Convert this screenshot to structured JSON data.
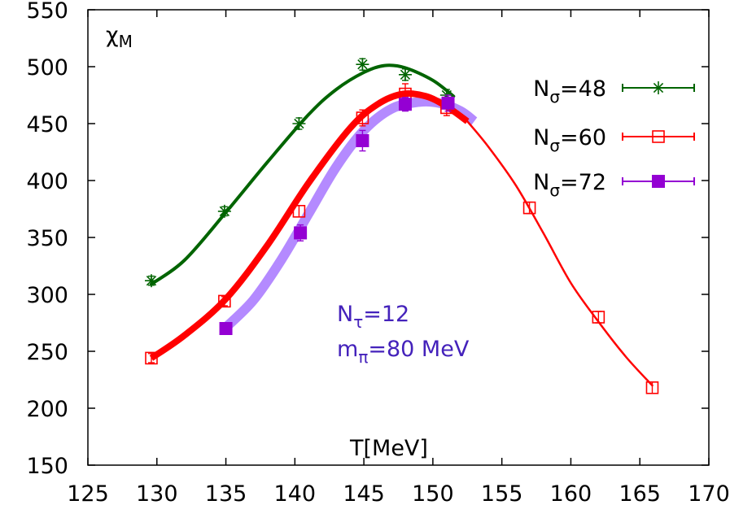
{
  "chart_data": {
    "type": "scatter",
    "title": "",
    "xlabel": "T[MeV]",
    "ylabel": "χ",
    "ylabel_sub": "M",
    "xlim": [
      125,
      170
    ],
    "ylim": [
      150,
      550
    ],
    "xticks": [
      125,
      130,
      135,
      140,
      145,
      150,
      155,
      160,
      165,
      170
    ],
    "xtick_labels": [
      "125",
      "130",
      "135",
      "140",
      "145",
      "150",
      "155",
      "160",
      "165",
      "170"
    ],
    "yticks": [
      150,
      200,
      250,
      300,
      350,
      400,
      450,
      500,
      550
    ],
    "ytick_labels": [
      "150",
      "200",
      "250",
      "300",
      "350",
      "400",
      "450",
      "500",
      "550"
    ],
    "grid": false,
    "legend_position": "top-right",
    "series": [
      {
        "name": "N",
        "name_sub": "σ",
        "name_suffix": "=48",
        "color": "#006400",
        "marker": "asterisk",
        "points": [
          {
            "x": 129.6,
            "y": 312,
            "err": 4
          },
          {
            "x": 134.9,
            "y": 373,
            "err": 4
          },
          {
            "x": 140.3,
            "y": 450,
            "err": 5
          },
          {
            "x": 144.9,
            "y": 502,
            "err": 5
          },
          {
            "x": 148.0,
            "y": 493,
            "err": 5
          },
          {
            "x": 151.0,
            "y": 475,
            "err": 5
          }
        ],
        "curve": [
          [
            129.6,
            309
          ],
          [
            132,
            330
          ],
          [
            135,
            372
          ],
          [
            138,
            416
          ],
          [
            141,
            458
          ],
          [
            143,
            480
          ],
          [
            145,
            495
          ],
          [
            146.5,
            501
          ],
          [
            148,
            499
          ],
          [
            150,
            488
          ],
          [
            151.5,
            474
          ]
        ],
        "curve_width": 4
      },
      {
        "name": "N",
        "name_sub": "σ",
        "name_suffix": "=60",
        "color": "#ff0000",
        "marker": "open-square",
        "points": [
          {
            "x": 129.6,
            "y": 244,
            "err": 4
          },
          {
            "x": 134.9,
            "y": 294,
            "err": 4
          },
          {
            "x": 140.3,
            "y": 373,
            "err": 5
          },
          {
            "x": 144.9,
            "y": 455,
            "err": 7
          },
          {
            "x": 148.0,
            "y": 476,
            "err": 9
          },
          {
            "x": 151.0,
            "y": 464,
            "err": 7
          },
          {
            "x": 157.0,
            "y": 376,
            "err": 5
          },
          {
            "x": 162.0,
            "y": 280,
            "err": 5
          },
          {
            "x": 165.9,
            "y": 218,
            "err": 5
          }
        ],
        "band": [
          [
            129.6,
            244
          ],
          [
            132,
            264
          ],
          [
            135,
            296
          ],
          [
            138,
            343
          ],
          [
            141,
            398
          ],
          [
            144,
            446
          ],
          [
            146,
            467
          ],
          [
            147.8,
            476
          ],
          [
            149.5,
            474
          ],
          [
            151,
            465
          ],
          [
            152.5,
            452
          ]
        ],
        "band_width": 8,
        "curve": [
          [
            152.5,
            452
          ],
          [
            154,
            430
          ],
          [
            156,
            396
          ],
          [
            158,
            354
          ],
          [
            160,
            310
          ],
          [
            162,
            276
          ],
          [
            164,
            245
          ],
          [
            165.9,
            220
          ]
        ],
        "curve_width": 2.5
      },
      {
        "name": "N",
        "name_sub": "σ",
        "name_suffix": "=72",
        "color": "#9400d3",
        "marker": "filled-square",
        "points": [
          {
            "x": 135.0,
            "y": 270,
            "err": 3
          },
          {
            "x": 140.4,
            "y": 354,
            "err": 7
          },
          {
            "x": 144.9,
            "y": 435,
            "err": 9
          },
          {
            "x": 148.0,
            "y": 467,
            "err": 6
          },
          {
            "x": 151.1,
            "y": 468,
            "err": 7
          }
        ],
        "band": [
          [
            135,
            271
          ],
          [
            137,
            295
          ],
          [
            139,
            330
          ],
          [
            141,
            371
          ],
          [
            143,
            412
          ],
          [
            145,
            444
          ],
          [
            147,
            463
          ],
          [
            149,
            469
          ],
          [
            150.5,
            468
          ],
          [
            152,
            461
          ],
          [
            153,
            452
          ]
        ],
        "band_width": 12,
        "band_color": "#b48aff"
      }
    ],
    "annotations": [
      {
        "text": "N",
        "sub": "τ",
        "suffix": "=12",
        "color": "#4422bb"
      },
      {
        "text": "m",
        "sub": "π",
        "suffix": "=80 MeV",
        "color": "#4422bb"
      }
    ]
  }
}
